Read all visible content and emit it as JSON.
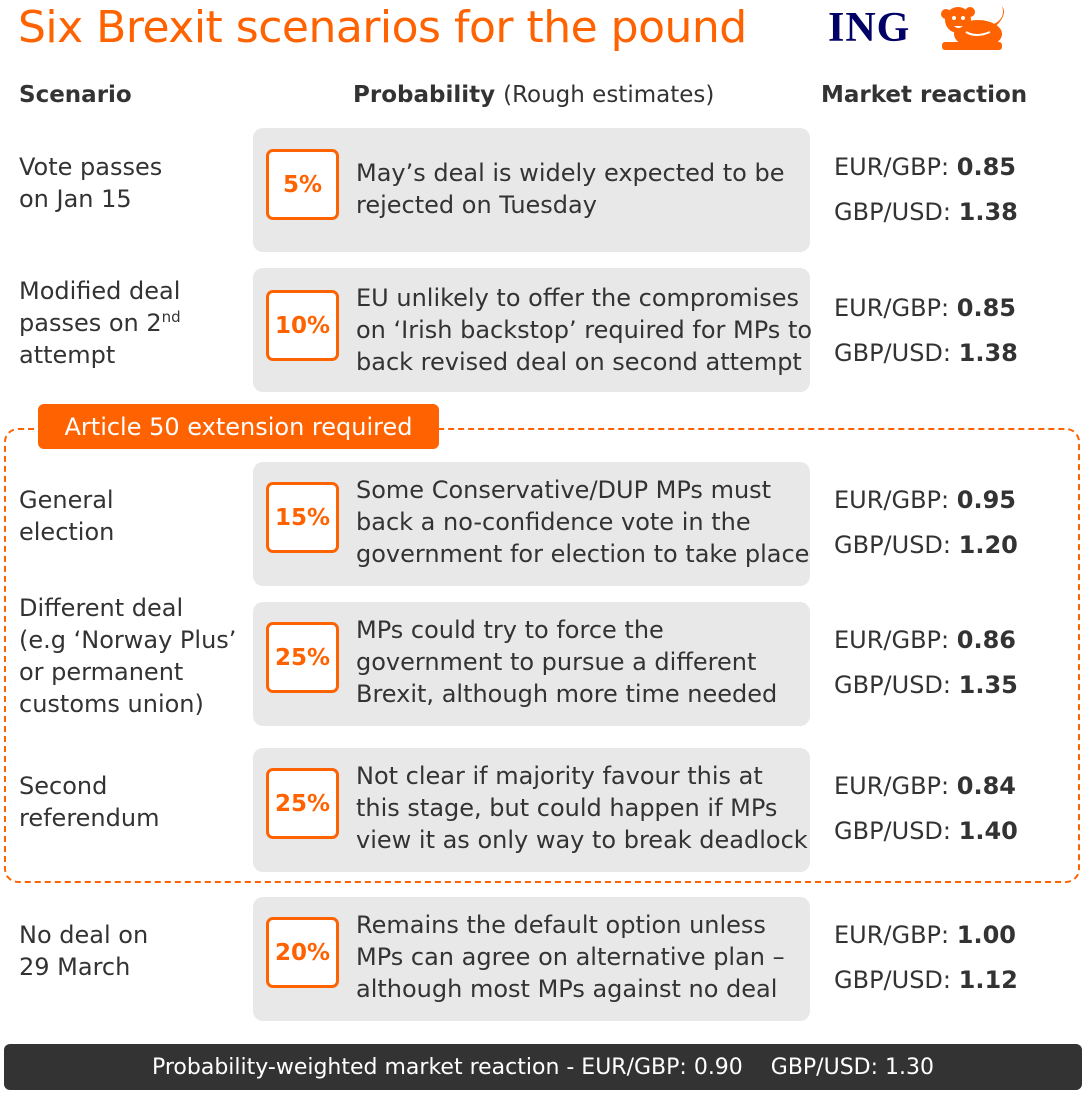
{
  "title": "Six Brexit scenarios for the pound",
  "brand": "ING",
  "headers": {
    "scenario": "Scenario",
    "probability": "Probability",
    "probability_note": "(Rough estimates)",
    "market": "Market reaction"
  },
  "extension_tag": "Article 50 extension required",
  "market_labels": {
    "eurgbp": "EUR/GBP:",
    "gbpusd": "GBP/USD:"
  },
  "scenarios": [
    {
      "label_lines": [
        "Vote passes",
        "on Jan 15"
      ],
      "probability": "5%",
      "desc_lines": [
        "May’s deal is widely expected to be",
        "rejected on Tuesday"
      ],
      "eurgbp": "0.85",
      "gbpusd": "1.38"
    },
    {
      "label_lines": [
        "Modified deal",
        "passes on 2",
        "nd",
        "attempt"
      ],
      "probability": "10%",
      "desc_lines": [
        "EU unlikely to offer the compromises",
        "on ‘Irish backstop’ required for MPs to",
        "back revised deal on second attempt"
      ],
      "eurgbp": "0.85",
      "gbpusd": "1.38"
    },
    {
      "label_lines": [
        "General",
        "election"
      ],
      "probability": "15%",
      "desc_lines": [
        "Some Conservative/DUP MPs must",
        "back a no-confidence vote in the",
        "government for election to take place"
      ],
      "eurgbp": "0.95",
      "gbpusd": "1.20"
    },
    {
      "label_lines": [
        "Different deal",
        "(e.g ‘Norway Plus’",
        "or permanent",
        "customs union)"
      ],
      "probability": "25%",
      "desc_lines": [
        "MPs could try to force the",
        "government to pursue a different",
        "Brexit, although more time needed"
      ],
      "eurgbp": "0.86",
      "gbpusd": "1.35"
    },
    {
      "label_lines": [
        "Second",
        "referendum"
      ],
      "probability": "25%",
      "desc_lines": [
        "Not clear if majority favour this at",
        "this stage, but could happen if MPs",
        "view it as only way to break deadlock"
      ],
      "eurgbp": "0.84",
      "gbpusd": "1.40"
    },
    {
      "label_lines": [
        "No deal on",
        "29 March"
      ],
      "probability": "20%",
      "desc_lines": [
        "Remains the default option unless",
        "MPs can agree on alternative plan –",
        "although most MPs against no deal"
      ],
      "eurgbp": "1.00",
      "gbpusd": "1.12"
    }
  ],
  "footer": "Probability-weighted market reaction - EUR/GBP: 0.90    GBP/USD: 1.30",
  "colors": {
    "accent": "#ff6200",
    "brand_navy": "#000066",
    "box_bg": "#e8e8e8",
    "footer_bg": "#333333"
  }
}
